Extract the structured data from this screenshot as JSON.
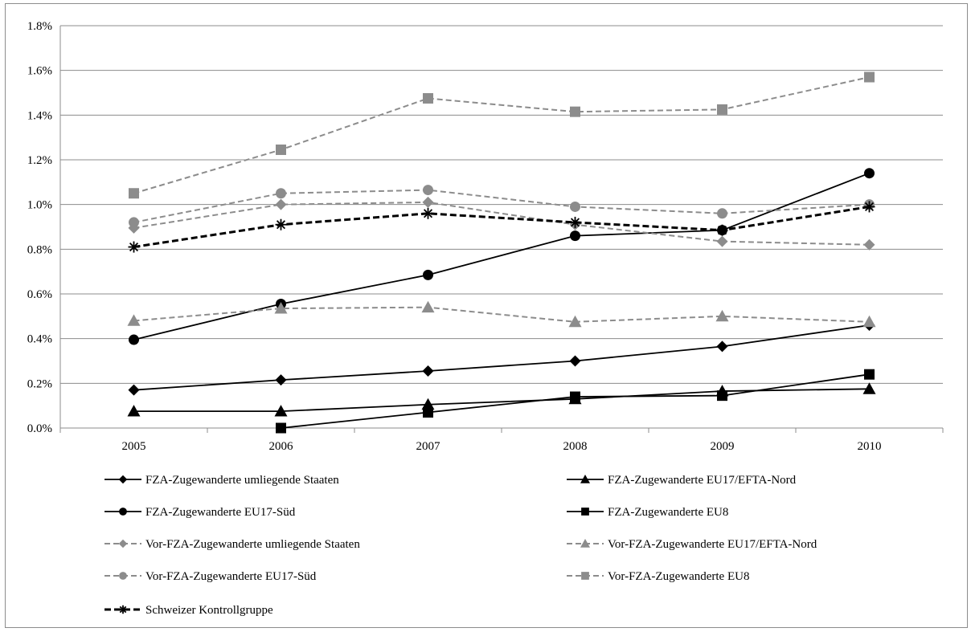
{
  "chart_data": {
    "type": "line",
    "title": "",
    "xlabel": "",
    "ylabel": "",
    "categories": [
      "2005",
      "2006",
      "2007",
      "2008",
      "2009",
      "2010"
    ],
    "y_ticks": [
      "0.0%",
      "0.2%",
      "0.4%",
      "0.6%",
      "0.8%",
      "1.0%",
      "1.2%",
      "1.4%",
      "1.6%",
      "1.8%"
    ],
    "ylim": [
      0,
      1.8
    ],
    "y_unit": "%",
    "grid": true,
    "legend_position": "bottom",
    "series": [
      {
        "name": "FZA-Zugewanderte umliegende Staaten",
        "values": [
          0.17,
          0.215,
          0.255,
          0.3,
          0.365,
          0.46
        ],
        "color": "#000000",
        "dash": "solid",
        "marker": "diamond"
      },
      {
        "name": "FZA-Zugewanderte EU17/EFTA-Nord",
        "values": [
          0.075,
          0.075,
          0.105,
          0.13,
          0.165,
          0.175
        ],
        "color": "#000000",
        "dash": "solid",
        "marker": "triangle"
      },
      {
        "name": "FZA-Zugewanderte EU17-Süd",
        "values": [
          0.395,
          0.555,
          0.685,
          0.86,
          0.885,
          1.14
        ],
        "color": "#000000",
        "dash": "solid",
        "marker": "circle"
      },
      {
        "name": "FZA-Zugewanderte EU8",
        "values": [
          null,
          0.0,
          0.07,
          0.14,
          0.145,
          0.24
        ],
        "color": "#000000",
        "dash": "solid",
        "marker": "square"
      },
      {
        "name": "Vor-FZA-Zugewanderte umliegende Staaten",
        "values": [
          0.895,
          1.0,
          1.01,
          0.91,
          0.835,
          0.82
        ],
        "color": "#8c8c8c",
        "dash": "dashed",
        "marker": "diamond"
      },
      {
        "name": "Vor-FZA-Zugewanderte EU17/EFTA-Nord",
        "values": [
          0.48,
          0.535,
          0.54,
          0.475,
          0.5,
          0.475
        ],
        "color": "#8c8c8c",
        "dash": "dashed",
        "marker": "triangle"
      },
      {
        "name": "Vor-FZA-Zugewanderte EU17-Süd",
        "values": [
          0.92,
          1.05,
          1.065,
          0.99,
          0.96,
          1.0
        ],
        "color": "#8c8c8c",
        "dash": "dashed",
        "marker": "circle"
      },
      {
        "name": "Vor-FZA-Zugewanderte EU8",
        "values": [
          1.05,
          1.245,
          1.475,
          1.415,
          1.425,
          1.57
        ],
        "color": "#8c8c8c",
        "dash": "dashed",
        "marker": "square"
      },
      {
        "name": "Schweizer Kontrollgruppe",
        "values": [
          0.81,
          0.91,
          0.96,
          0.92,
          0.885,
          0.99
        ],
        "color": "#000000",
        "dash": "bold-dashed",
        "marker": "star"
      }
    ]
  }
}
